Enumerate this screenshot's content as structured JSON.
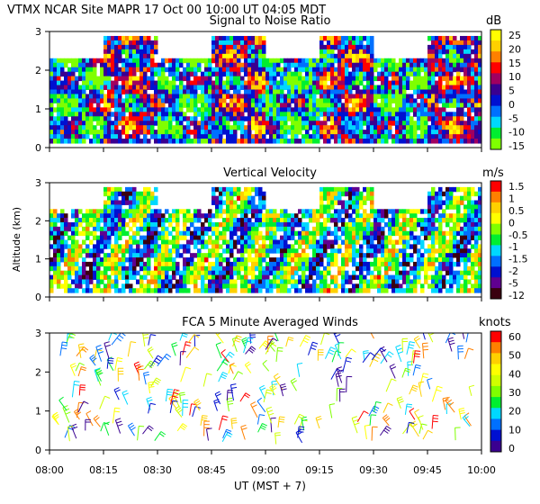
{
  "header": {
    "title": "VTMX   NCAR Site   MAPR 17 Oct 00    10:00 UT   04:05   MDT"
  },
  "panels": [
    {
      "title": "Signal to Noise Ratio",
      "unit": "dB",
      "colorbar_ticks": [
        "25",
        "20",
        "15",
        "10",
        "5",
        "0",
        "-5",
        "-10",
        "-15"
      ],
      "colors": [
        "#7fff00",
        "#00ee30",
        "#00d8ff",
        "#0070ff",
        "#0010d0",
        "#3a0090",
        "#a00060",
        "#ff0000",
        "#ff8000",
        "#ffd000",
        "#ffff00"
      ]
    },
    {
      "title": "Vertical Velocity",
      "unit": "m/s",
      "colorbar_ticks": [
        "1.5",
        "1",
        "0.5",
        "0",
        "-0.5",
        "-1",
        "-1.5",
        "-2",
        "-5",
        "-12"
      ],
      "colors": [
        "#3a0010",
        "#600090",
        "#0010d0",
        "#0070ff",
        "#00d8ff",
        "#00ee30",
        "#7fff00",
        "#ffff00",
        "#ffd000",
        "#ff8000",
        "#ff0000"
      ]
    },
    {
      "title": "FCA 5 Minute Averaged Winds",
      "unit": "knots",
      "colorbar_ticks": [
        "60",
        "50",
        "40",
        "30",
        "20",
        "10",
        "0"
      ],
      "colors": [
        "#3a0090",
        "#0010d0",
        "#0070ff",
        "#00d8ff",
        "#00ee30",
        "#7fff00",
        "#d0ff00",
        "#ffff00",
        "#ffd000",
        "#ff8000",
        "#ff0000"
      ]
    }
  ],
  "axes": {
    "ylabel": "Altitude (km)",
    "xlabel": "UT   (MST + 7)",
    "xticks": [
      "08:00",
      "08:15",
      "08:30",
      "08:45",
      "09:00",
      "09:15",
      "09:30",
      "09:45",
      "10:00"
    ],
    "yticks": [
      "0",
      "1",
      "2",
      "3"
    ]
  },
  "chart_data": [
    {
      "type": "heatmap",
      "title": "Signal to Noise Ratio",
      "colorbar_label": "dB",
      "xlim": [
        "08:00",
        "10:00"
      ],
      "ylim": [
        0,
        3
      ],
      "colorbar_range": [
        -15,
        25
      ],
      "ylabel": "Altitude (km)",
      "xlabel": "UT   (MST + 7)"
    },
    {
      "type": "heatmap",
      "title": "Vertical Velocity",
      "colorbar_label": "m/s",
      "xlim": [
        "08:00",
        "10:00"
      ],
      "ylim": [
        0,
        3
      ],
      "colorbar_range": [
        -12,
        1.5
      ],
      "ylabel": "Altitude (km)",
      "xlabel": "UT   (MST + 7)"
    },
    {
      "type": "scatter",
      "title": "FCA 5 Minute Averaged Winds",
      "colorbar_label": "knots",
      "xlim": [
        "08:00",
        "10:00"
      ],
      "ylim": [
        0,
        3
      ],
      "colorbar_range": [
        0,
        60
      ],
      "ylabel": "Altitude (km)",
      "xlabel": "UT   (MST + 7)"
    }
  ]
}
